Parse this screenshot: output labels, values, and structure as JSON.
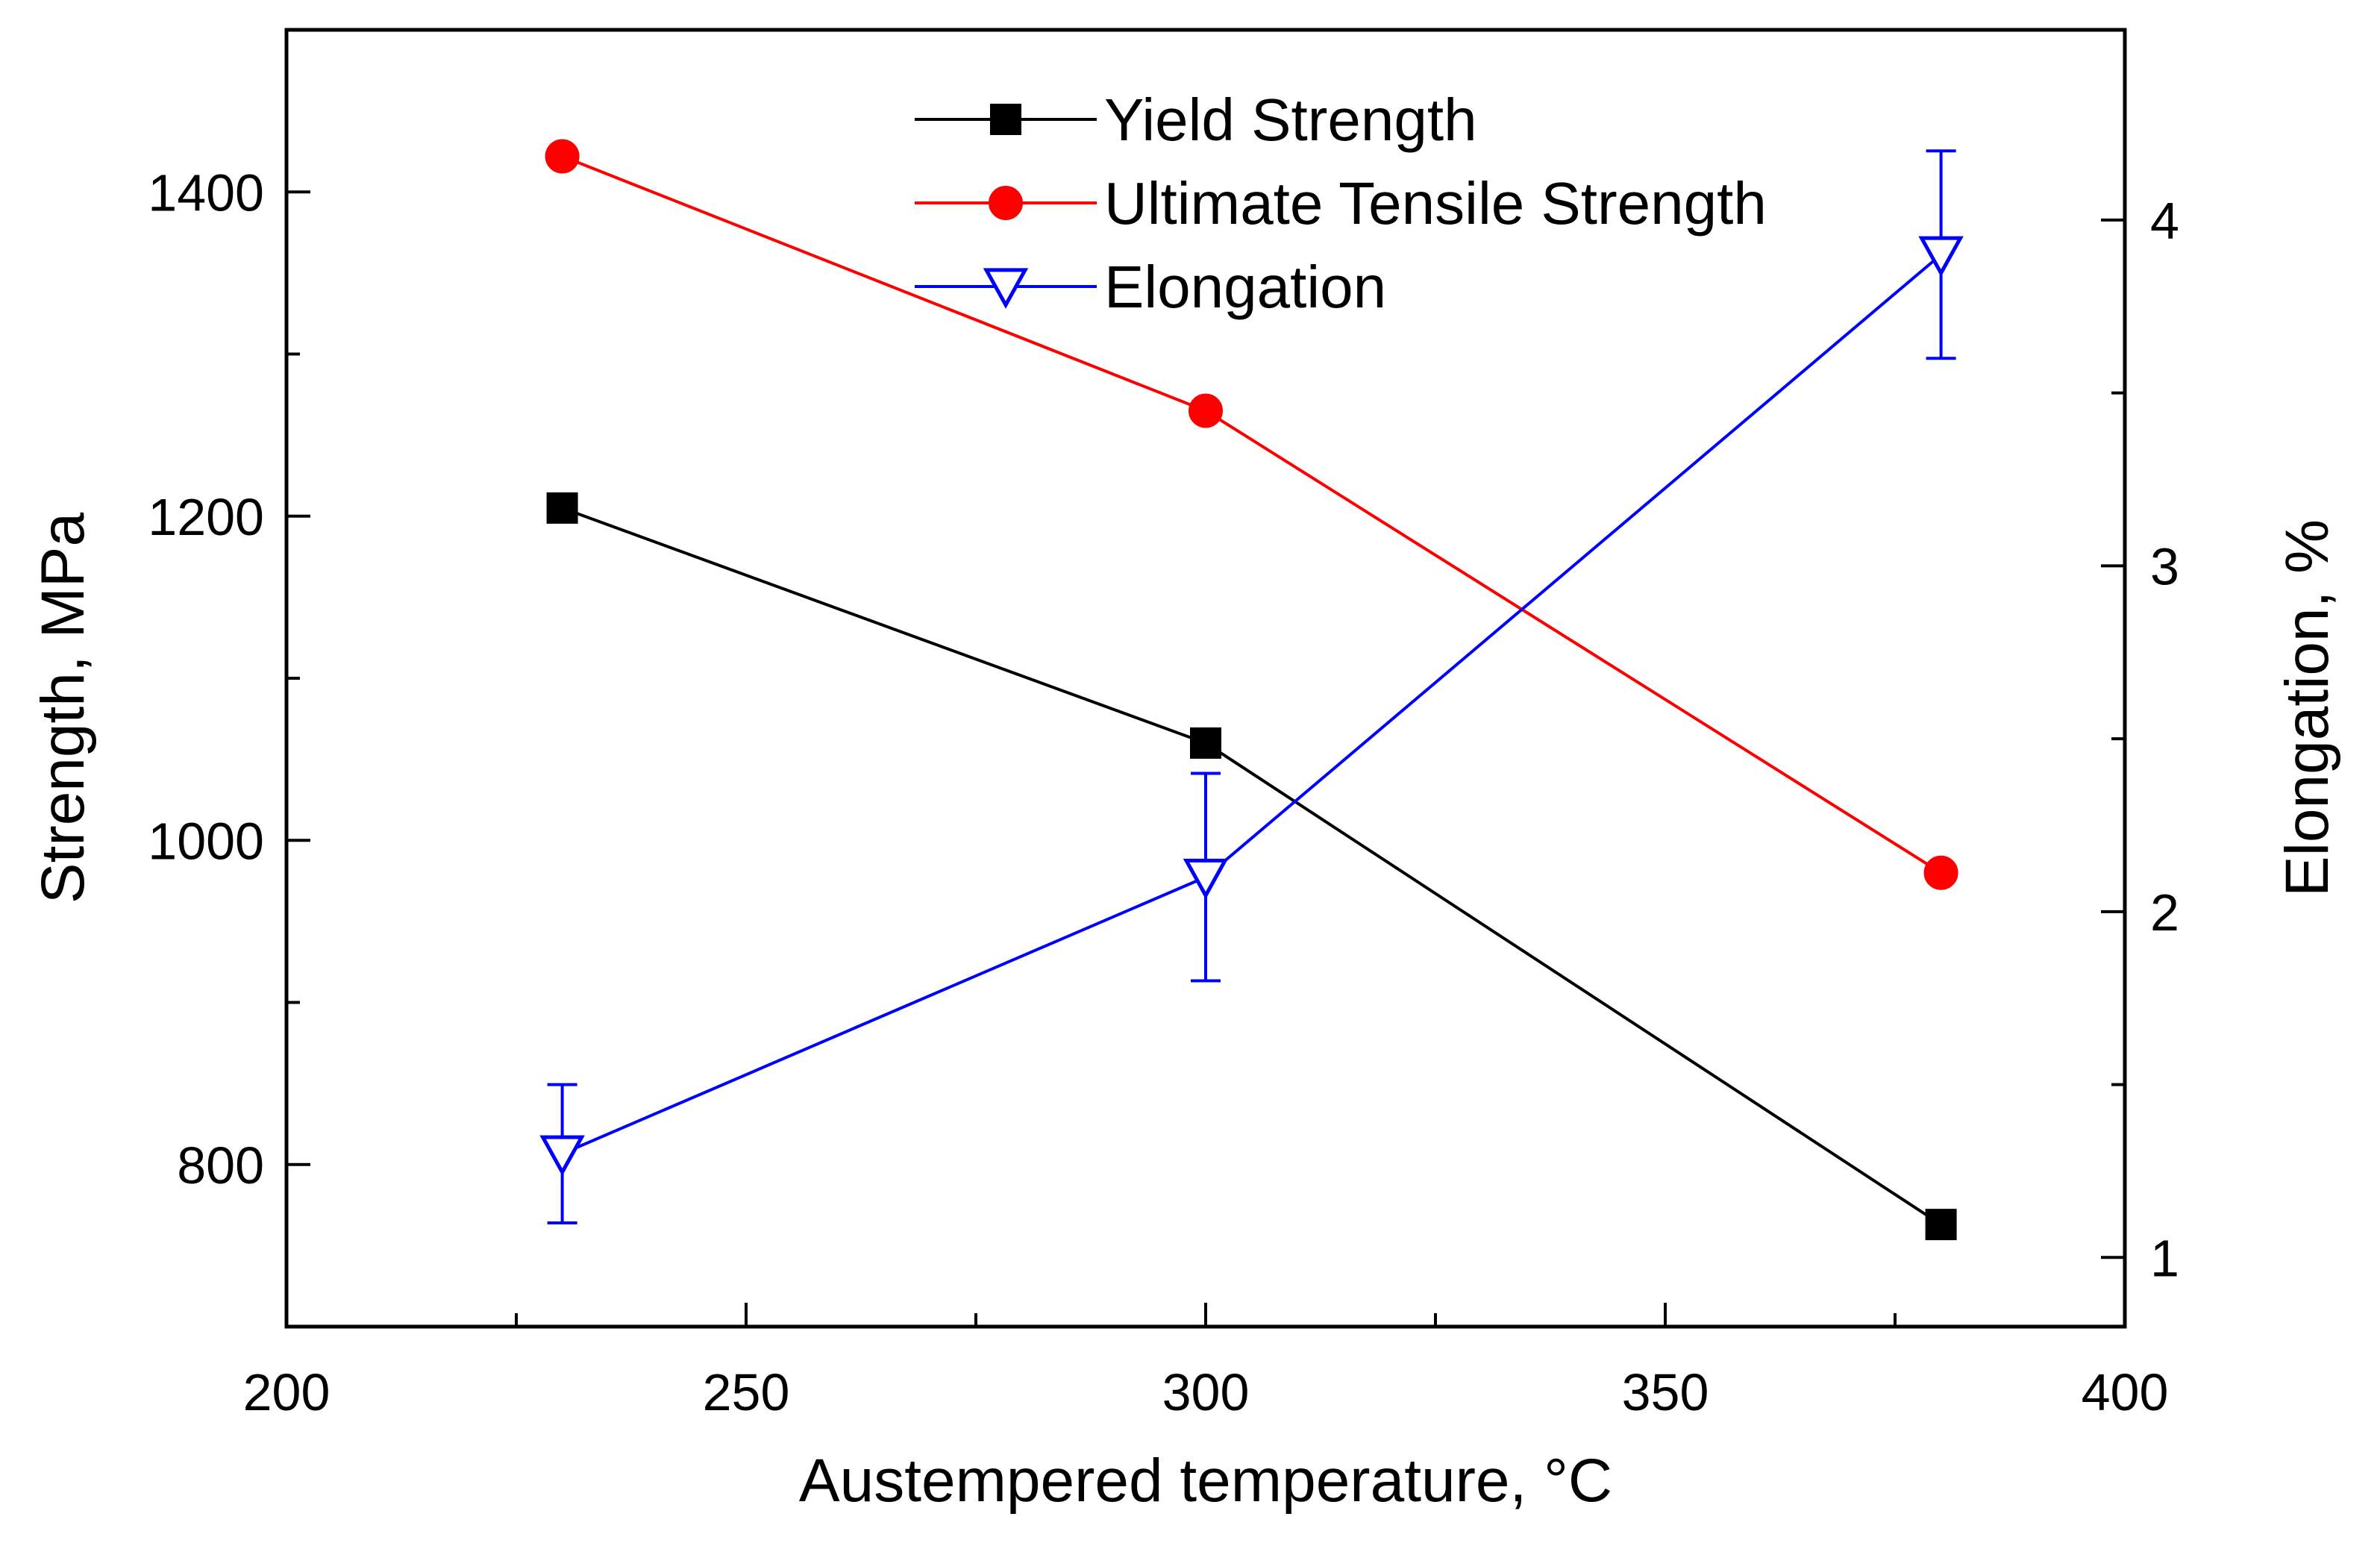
{
  "chart_data": {
    "type": "line",
    "title": "",
    "xlabel": "Austempered temperature, °C",
    "ylabel_left": "Strength, MPa",
    "ylabel_right": "Elongation, %",
    "xlim": [
      200,
      400
    ],
    "ylim_left": [
      700,
      1500
    ],
    "ylim_right": [
      0.8,
      4.55
    ],
    "x_ticks": [
      200,
      250,
      300,
      350,
      400
    ],
    "x_tick_labels": [
      "200",
      "250",
      "300",
      "350",
      "400"
    ],
    "y_left_ticks": [
      800,
      1000,
      1200,
      1400
    ],
    "y_left_tick_labels": [
      "800",
      "1000",
      "1200",
      "1400"
    ],
    "y_right_ticks": [
      1,
      2,
      3,
      4
    ],
    "y_right_tick_labels": [
      "1",
      "2",
      "3",
      "4"
    ],
    "grid": false,
    "legend_position": "top-center",
    "series": [
      {
        "name": "Yield Strength",
        "axis": "left",
        "color": "#000000",
        "marker": "square",
        "x": [
          230,
          300,
          380
        ],
        "values": [
          1205,
          1060,
          763
        ]
      },
      {
        "name": "Ultimate Tensile Strength",
        "axis": "left",
        "color": "#ff0000",
        "marker": "circle",
        "x": [
          230,
          300,
          380
        ],
        "values": [
          1422,
          1265,
          980
        ]
      },
      {
        "name": "Elongation",
        "axis": "right",
        "color": "#0000ff",
        "marker": "triangle-down-open",
        "x": [
          230,
          300,
          380
        ],
        "values": [
          1.3,
          2.1,
          3.9
        ],
        "errors": [
          0.2,
          0.3,
          0.3
        ]
      }
    ]
  }
}
